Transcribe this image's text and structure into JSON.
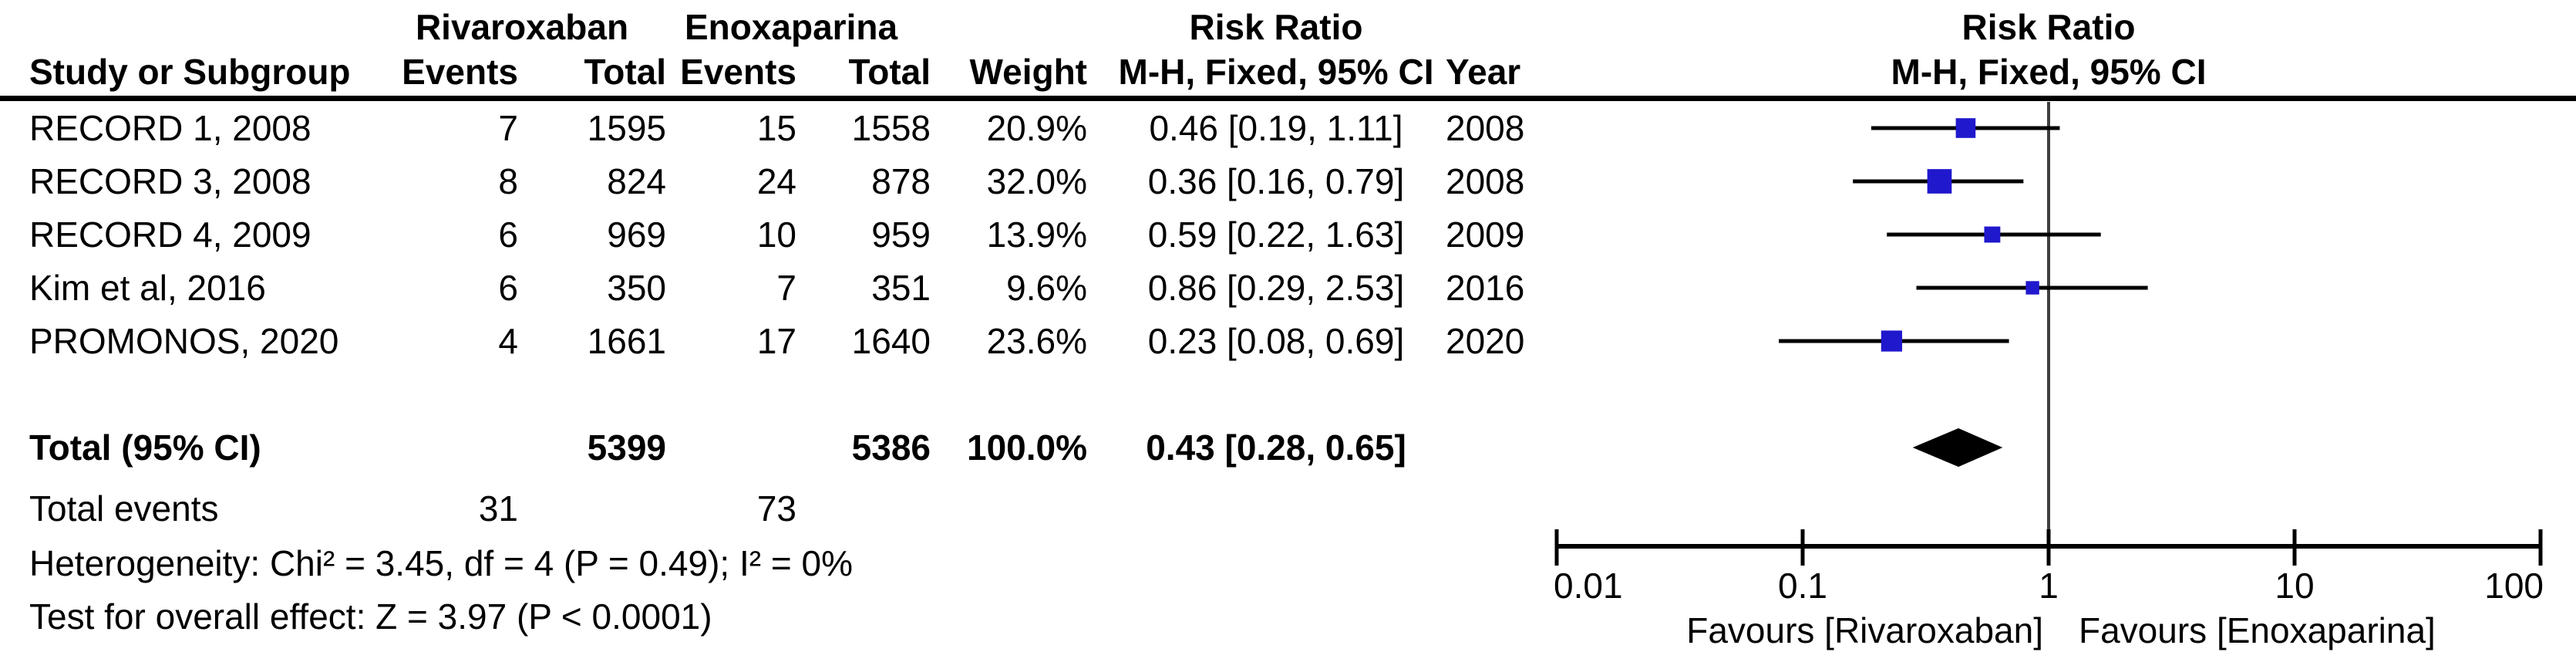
{
  "table": {
    "group_headers": {
      "treatment": "Rivaroxaban",
      "control": "Enoxaparina",
      "effect": "Risk Ratio",
      "plot_effect": "Risk Ratio"
    },
    "column_headers": {
      "study": "Study or Subgroup",
      "events_treatment": "Events",
      "total_treatment": "Total",
      "events_control": "Events",
      "total_control": "Total",
      "weight": "Weight",
      "method": "M-H, Fixed, 95% CI",
      "year": "Year",
      "plot_method": "M-H, Fixed, 95% CI"
    },
    "rows": [
      {
        "study": "RECORD 1, 2008",
        "riv_events": "7",
        "riv_total": "1595",
        "enox_events": "15",
        "enox_total": "1558",
        "weight": "20.9%",
        "rr_ci": "0.46 [0.19, 1.11]",
        "year": "2008"
      },
      {
        "study": "RECORD 3, 2008",
        "riv_events": "8",
        "riv_total": "824",
        "enox_events": "24",
        "enox_total": "878",
        "weight": "32.0%",
        "rr_ci": "0.36 [0.16, 0.79]",
        "year": "2008"
      },
      {
        "study": "RECORD 4, 2009",
        "riv_events": "6",
        "riv_total": "969",
        "enox_events": "10",
        "enox_total": "959",
        "weight": "13.9%",
        "rr_ci": "0.59 [0.22, 1.63]",
        "year": "2009"
      },
      {
        "study": "Kim et al, 2016",
        "riv_events": "6",
        "riv_total": "350",
        "enox_events": "7",
        "enox_total": "351",
        "weight": "9.6%",
        "rr_ci": "0.86 [0.29, 2.53]",
        "year": "2016"
      },
      {
        "study": "PROMONOS, 2020",
        "riv_events": "4",
        "riv_total": "1661",
        "enox_events": "17",
        "enox_total": "1640",
        "weight": "23.6%",
        "rr_ci": "0.23 [0.08, 0.69]",
        "year": "2020"
      }
    ],
    "total_row": {
      "label": "Total (95% CI)",
      "riv_total": "5399",
      "enox_total": "5386",
      "weight": "100.0%",
      "rr_ci": "0.43 [0.28, 0.65]"
    },
    "total_events": {
      "label": "Total events",
      "riv": "31",
      "enox": "73"
    },
    "heterogeneity": "Heterogeneity: Chi² = 3.45, df = 4 (P = 0.49); I² = 0%",
    "overall_effect": "Test for overall effect: Z = 3.97 (P < 0.0001)"
  },
  "chart_data": {
    "type": "scatter",
    "variant": "forest-plot (meta-analysis, Mantel-Haenszel fixed-effect)",
    "title": "Risk Ratio",
    "subtitle": "M-H, Fixed, 95% CI",
    "x_scale": "log10",
    "x_range": [
      0.01,
      100
    ],
    "x_ticks": [
      0.01,
      0.1,
      1,
      10,
      100
    ],
    "x_tick_labels": [
      "0.01",
      "0.1",
      "1",
      "10",
      "100"
    ],
    "null_line_x": 1,
    "studies": [
      {
        "name": "RECORD 1, 2008",
        "rr": 0.46,
        "ci_low": 0.19,
        "ci_high": 1.11,
        "weight_pct": 20.9,
        "year": 2008
      },
      {
        "name": "RECORD 3, 2008",
        "rr": 0.36,
        "ci_low": 0.16,
        "ci_high": 0.79,
        "weight_pct": 32.0,
        "year": 2008
      },
      {
        "name": "RECORD 4, 2009",
        "rr": 0.59,
        "ci_low": 0.22,
        "ci_high": 1.63,
        "weight_pct": 13.9,
        "year": 2009
      },
      {
        "name": "Kim et al, 2016",
        "rr": 0.86,
        "ci_low": 0.29,
        "ci_high": 2.53,
        "weight_pct": 9.6,
        "year": 2016
      },
      {
        "name": "PROMONOS, 2020",
        "rr": 0.23,
        "ci_low": 0.08,
        "ci_high": 0.69,
        "weight_pct": 23.6,
        "year": 2020
      }
    ],
    "total": {
      "label": "Total (95% CI)",
      "rr": 0.43,
      "ci_low": 0.28,
      "ci_high": 0.65,
      "weight_pct": 100.0
    },
    "footer_left": "Favours [Rivaroxaban]",
    "footer_right": "Favours [Enoxaparina]",
    "colors": {
      "marker": "#2018cd",
      "diamond": "#000000",
      "ci_line": "#000000",
      "axis": "#000000",
      "null_line": "#3f3f3f",
      "text": "#000000",
      "background": "#ffffff"
    }
  }
}
